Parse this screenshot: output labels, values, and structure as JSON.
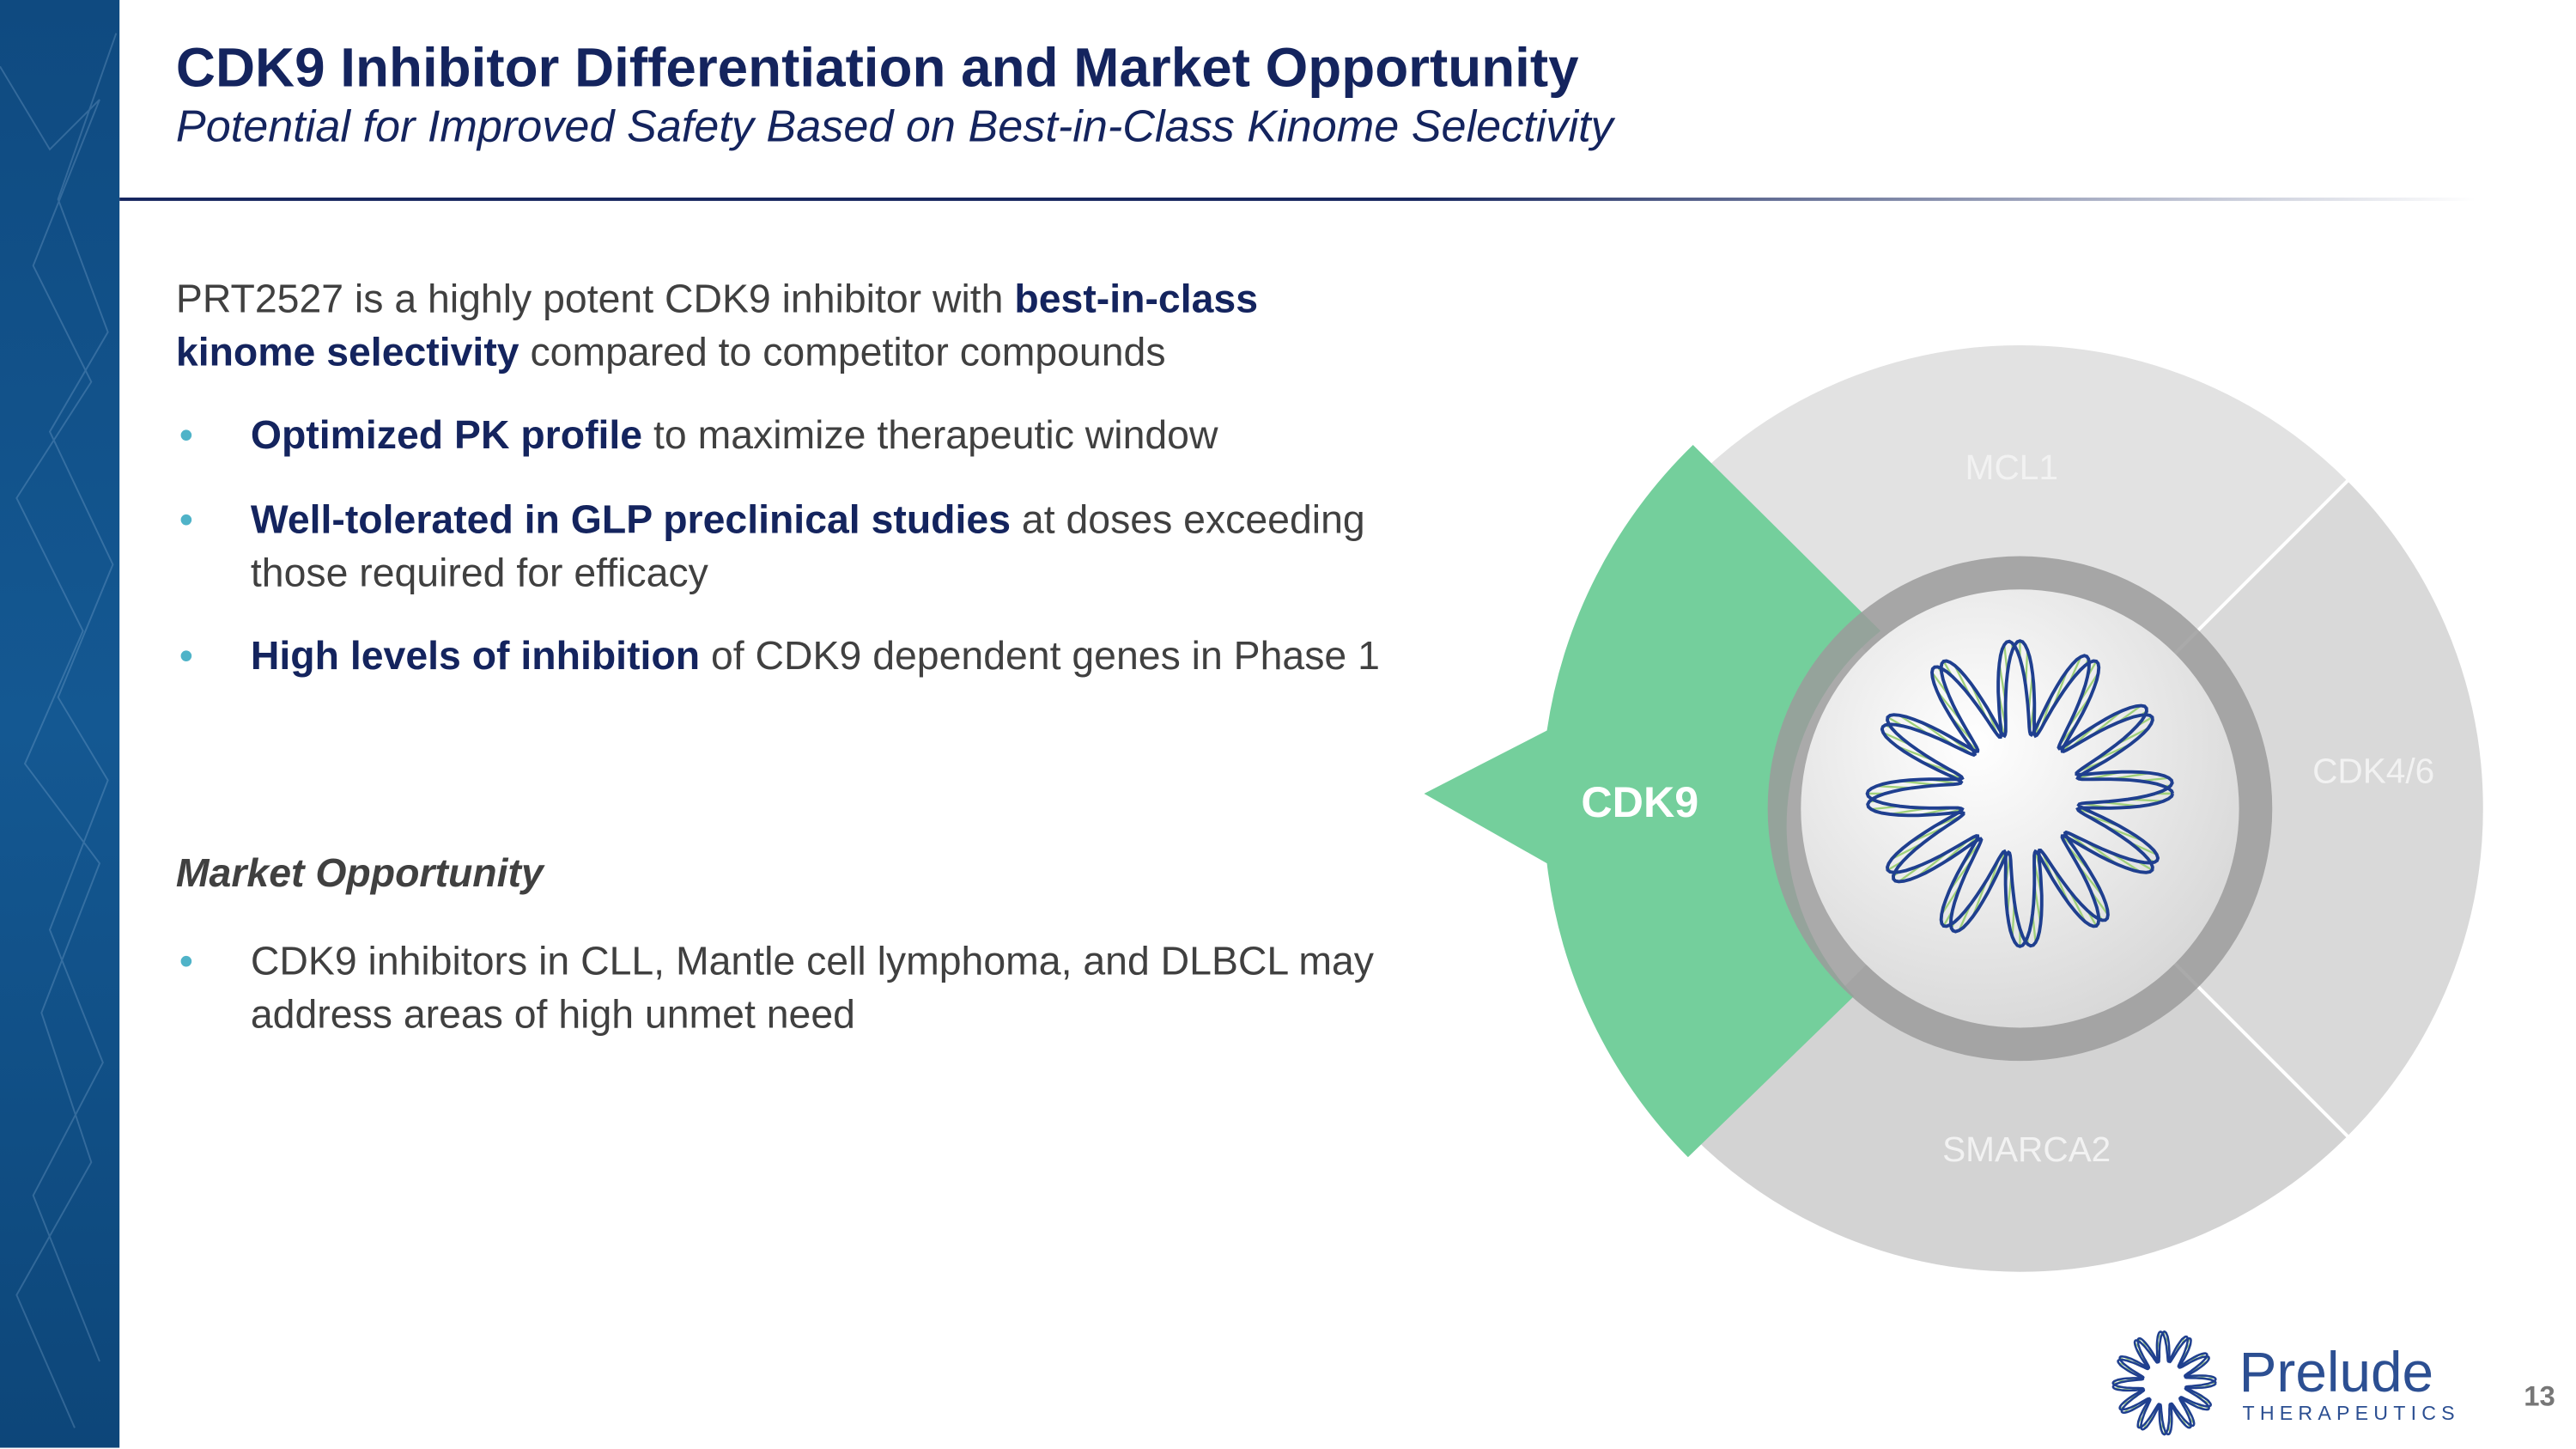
{
  "header": {
    "title": "CDK9 Inhibitor Differentiation and Market Opportunity",
    "subtitle": "Potential for Improved Safety Based on Best-in-Class Kinome Selectivity"
  },
  "intro": [
    {
      "text": "PRT2527 is a highly potent CDK9 inhibitor with "
    },
    {
      "text": "best-in-class kinome selectivity",
      "bold": true
    },
    {
      "text": " compared to competitor compounds"
    }
  ],
  "bullets": [
    [
      {
        "text": "Optimized PK profile",
        "bold": true
      },
      {
        "text": " to maximize therapeutic window"
      }
    ],
    [
      {
        "text": "Well-tolerated in GLP preclinical studies",
        "bold": true
      },
      {
        "text": " at doses exceeding those required for efficacy"
      }
    ],
    [
      {
        "text": "High levels of inhibition",
        "bold": true
      },
      {
        "text": " of CDK9 dependent genes in Phase 1"
      }
    ]
  ],
  "market": {
    "heading": "Market Opportunity",
    "bullets": [
      [
        {
          "text": "CDK9 inhibitors in CLL, Mantle cell lymphoma, and DLBCL may address areas of high unmet need"
        }
      ]
    ]
  },
  "diagram": {
    "highlight": "CDK9",
    "segments": [
      "MCL1",
      "CDK4/6",
      "SMARCA2"
    ]
  },
  "logo": {
    "name": "Prelude",
    "tagline": "THERAPEUTICS"
  },
  "page_number": "13"
}
